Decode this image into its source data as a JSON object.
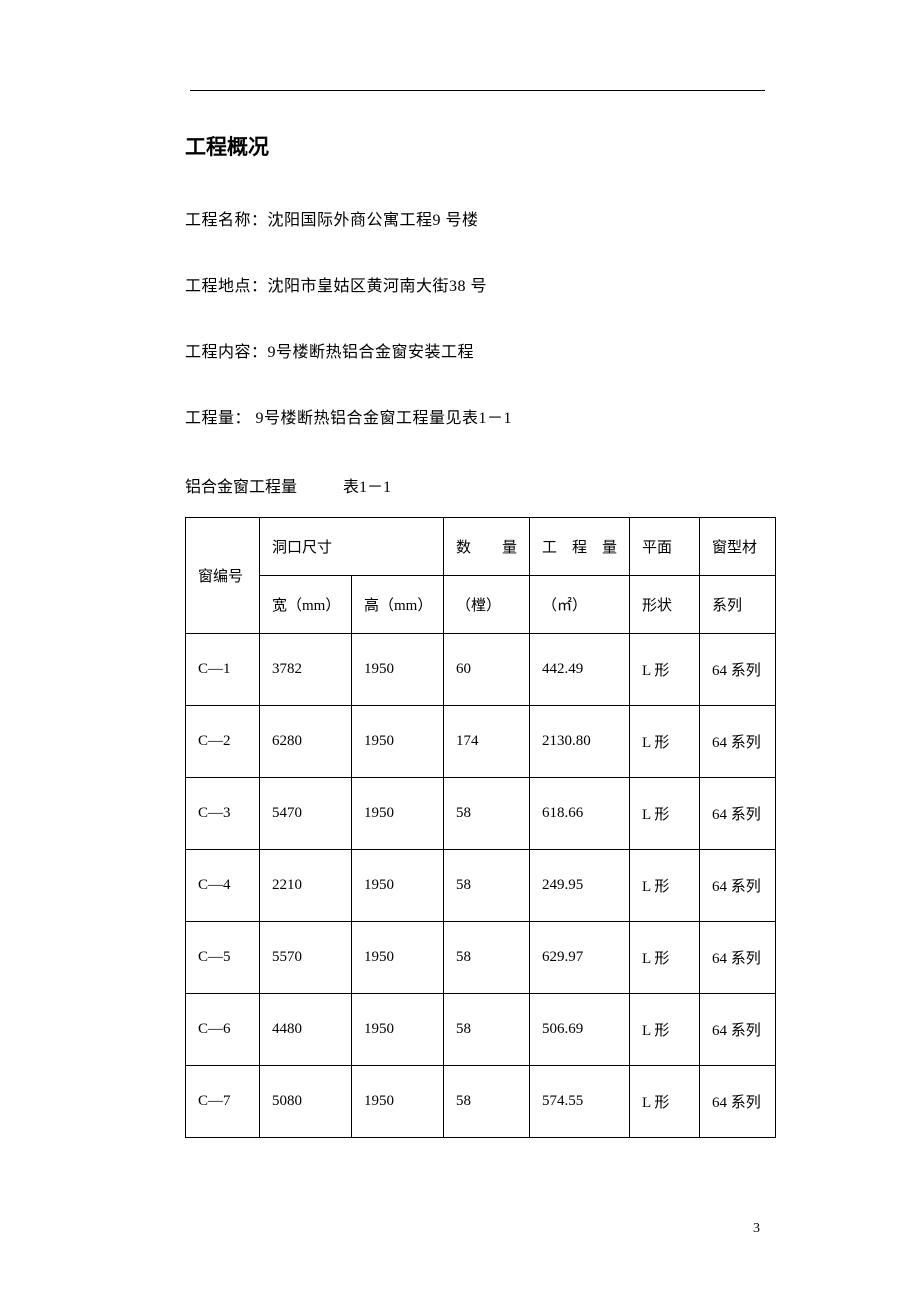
{
  "heading": "工程概况",
  "lines": {
    "name": "工程名称：沈阳国际外商公寓工程9 号楼",
    "loc": "工程地点：沈阳市皇姑区黄河南大街38 号",
    "content": "工程内容：9号楼断热铝合金窗安装工程",
    "qty": "工程量： 9号楼断热铝合金窗工程量见表1－1"
  },
  "table_caption_a": "铝合金窗工程量",
  "table_caption_b": "表1－1",
  "table": {
    "header": {
      "id": "窗编号",
      "opening": "洞口尺寸",
      "opening_w": "宽（mm）",
      "opening_h": "高（mm）",
      "qty_top": "数　　量",
      "qty_bot": "（樘）",
      "amount_top": "工　程　量",
      "amount_bot": "（㎡）",
      "shape_top": "平面",
      "shape_bot": "形状",
      "profile_top": "窗型材",
      "profile_bot": "系列"
    },
    "rows": [
      {
        "id": "C—1",
        "w": "3782",
        "h": "1950",
        "q": "60",
        "a": "442.49",
        "s": "L 形",
        "p": "64 系列"
      },
      {
        "id": "C—2",
        "w": "6280",
        "h": "1950",
        "q": "174",
        "a": "2130.80",
        "s": "L 形",
        "p": "64 系列"
      },
      {
        "id": "C—3",
        "w": "5470",
        "h": "1950",
        "q": "58",
        "a": "618.66",
        "s": "L 形",
        "p": "64 系列"
      },
      {
        "id": "C—4",
        "w": "2210",
        "h": "1950",
        "q": "58",
        "a": "249.95",
        "s": "L 形",
        "p": "64 系列"
      },
      {
        "id": "C—5",
        "w": "5570",
        "h": "1950",
        "q": "58",
        "a": "629.97",
        "s": "L 形",
        "p": "64 系列"
      },
      {
        "id": "C—6",
        "w": "4480",
        "h": "1950",
        "q": "58",
        "a": "506.69",
        "s": "L 形",
        "p": "64 系列"
      },
      {
        "id": "C—7",
        "w": "5080",
        "h": "1950",
        "q": "58",
        "a": "574.55",
        "s": "L 形",
        "p": "64 系列"
      }
    ]
  },
  "page_number": "3"
}
